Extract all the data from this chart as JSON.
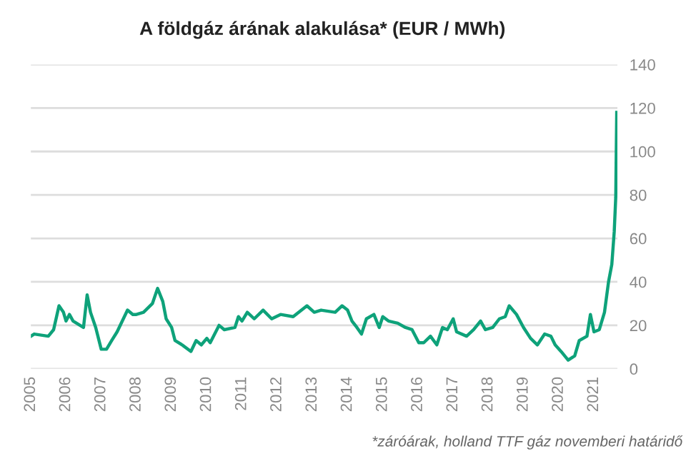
{
  "chart_data": {
    "type": "line",
    "title": "A földgáz árának alakulása* (EUR / MWh)",
    "annotations": [
      "*záróárak, holland TTF gáz novemberi határidő"
    ],
    "x": [
      "2005-01-01",
      "2005-02-05",
      "2005-07-01",
      "2005-08-25",
      "2005-10-20",
      "2005-12-05",
      "2006-01-01",
      "2006-02-05",
      "2006-03-15",
      "2006-07-01",
      "2006-08-08",
      "2006-09-12",
      "2006-11-05",
      "2007-01-01",
      "2007-02-25",
      "2007-04-20",
      "2007-06-15",
      "2007-10-01",
      "2007-11-25",
      "2008-01-01",
      "2008-03-15",
      "2008-06-15",
      "2008-08-08",
      "2008-10-01",
      "2008-11-05",
      "2009-01-01",
      "2009-02-05",
      "2009-04-20",
      "2009-07-20",
      "2009-09-12",
      "2009-11-05",
      "2010-01-01",
      "2010-02-05",
      "2010-05-08",
      "2010-07-01",
      "2010-10-20",
      "2010-11-25",
      "2011-01-01",
      "2011-02-25",
      "2011-05-08",
      "2011-08-08",
      "2011-11-05",
      "2012-02-05",
      "2012-06-15",
      "2012-11-05",
      "2013-01-20",
      "2013-04-01",
      "2013-08-25",
      "2013-11-05",
      "2014-01-01",
      "2014-02-15",
      "2014-04-08",
      "2014-05-25",
      "2014-07-15",
      "2014-10-01",
      "2014-11-25",
      "2015-01-01",
      "2015-03-01",
      "2015-06-05",
      "2015-08-25",
      "2015-11-01",
      "2016-01-10",
      "2016-03-01",
      "2016-05-10",
      "2016-07-15",
      "2016-09-12",
      "2016-11-01",
      "2017-01-01",
      "2017-02-05",
      "2017-05-20",
      "2017-08-01",
      "2017-10-12",
      "2017-12-01",
      "2018-02-15",
      "2018-04-25",
      "2018-06-25",
      "2018-08-05",
      "2018-10-20",
      "2019-01-01",
      "2019-03-15",
      "2019-05-25",
      "2019-08-08",
      "2019-10-12",
      "2019-11-25",
      "2020-01-25",
      "2020-04-08",
      "2020-06-15",
      "2020-08-01",
      "2020-10-20",
      "2020-11-25",
      "2021-01-01",
      "2021-02-25",
      "2021-04-20",
      "2021-06-01",
      "2021-07-05",
      "2021-07-30",
      "2021-08-15",
      "2021-08-25"
    ],
    "series": [
      {
        "color": "#0ea27a",
        "values": [
          15,
          16,
          15,
          18,
          29,
          26,
          22,
          25,
          22,
          19,
          34,
          26,
          19,
          9,
          9,
          13,
          17,
          27,
          25,
          25,
          26,
          30,
          37,
          31,
          23,
          19,
          13,
          11,
          8,
          13,
          11,
          14,
          12,
          20,
          18,
          19,
          24,
          22,
          26,
          23,
          27,
          23,
          25,
          24,
          29,
          26,
          27,
          26,
          29,
          27,
          22,
          19,
          16,
          23,
          25,
          19,
          24,
          22,
          21,
          19,
          18,
          12,
          12,
          15,
          11,
          19,
          18,
          23,
          17,
          15,
          18,
          22,
          18,
          19,
          23,
          24,
          29,
          25,
          19,
          14,
          11,
          16,
          15,
          11,
          8,
          4,
          6,
          13,
          15,
          25,
          17,
          18,
          26,
          40,
          48,
          63,
          79,
          118
        ]
      }
    ],
    "xlim": [
      "2005-01-01",
      "2021-09-01"
    ],
    "xticks": [
      {
        "value": "2005-01-01",
        "label": "2005"
      },
      {
        "value": "2006-01-01",
        "label": "2006"
      },
      {
        "value": "2007-01-01",
        "label": "2007"
      },
      {
        "value": "2008-01-01",
        "label": "2008"
      },
      {
        "value": "2009-01-01",
        "label": "2009"
      },
      {
        "value": "2010-01-01",
        "label": "2010"
      },
      {
        "value": "2011-01-01",
        "label": "2011"
      },
      {
        "value": "2012-01-01",
        "label": "2012"
      },
      {
        "value": "2013-01-01",
        "label": "2013"
      },
      {
        "value": "2014-01-01",
        "label": "2014"
      },
      {
        "value": "2015-01-01",
        "label": "2015"
      },
      {
        "value": "2016-01-01",
        "label": "2016"
      },
      {
        "value": "2017-01-01",
        "label": "2017"
      },
      {
        "value": "2018-01-01",
        "label": "2018"
      },
      {
        "value": "2019-01-01",
        "label": "2019"
      },
      {
        "value": "2020-01-01",
        "label": "2020"
      },
      {
        "value": "2021-01-01",
        "label": "2021"
      }
    ],
    "ylim": [
      0,
      140
    ],
    "yticks": [
      0,
      20,
      40,
      60,
      80,
      100,
      120,
      140
    ],
    "grid": "y",
    "legend": false,
    "marker": "none",
    "line_style": "solid"
  }
}
